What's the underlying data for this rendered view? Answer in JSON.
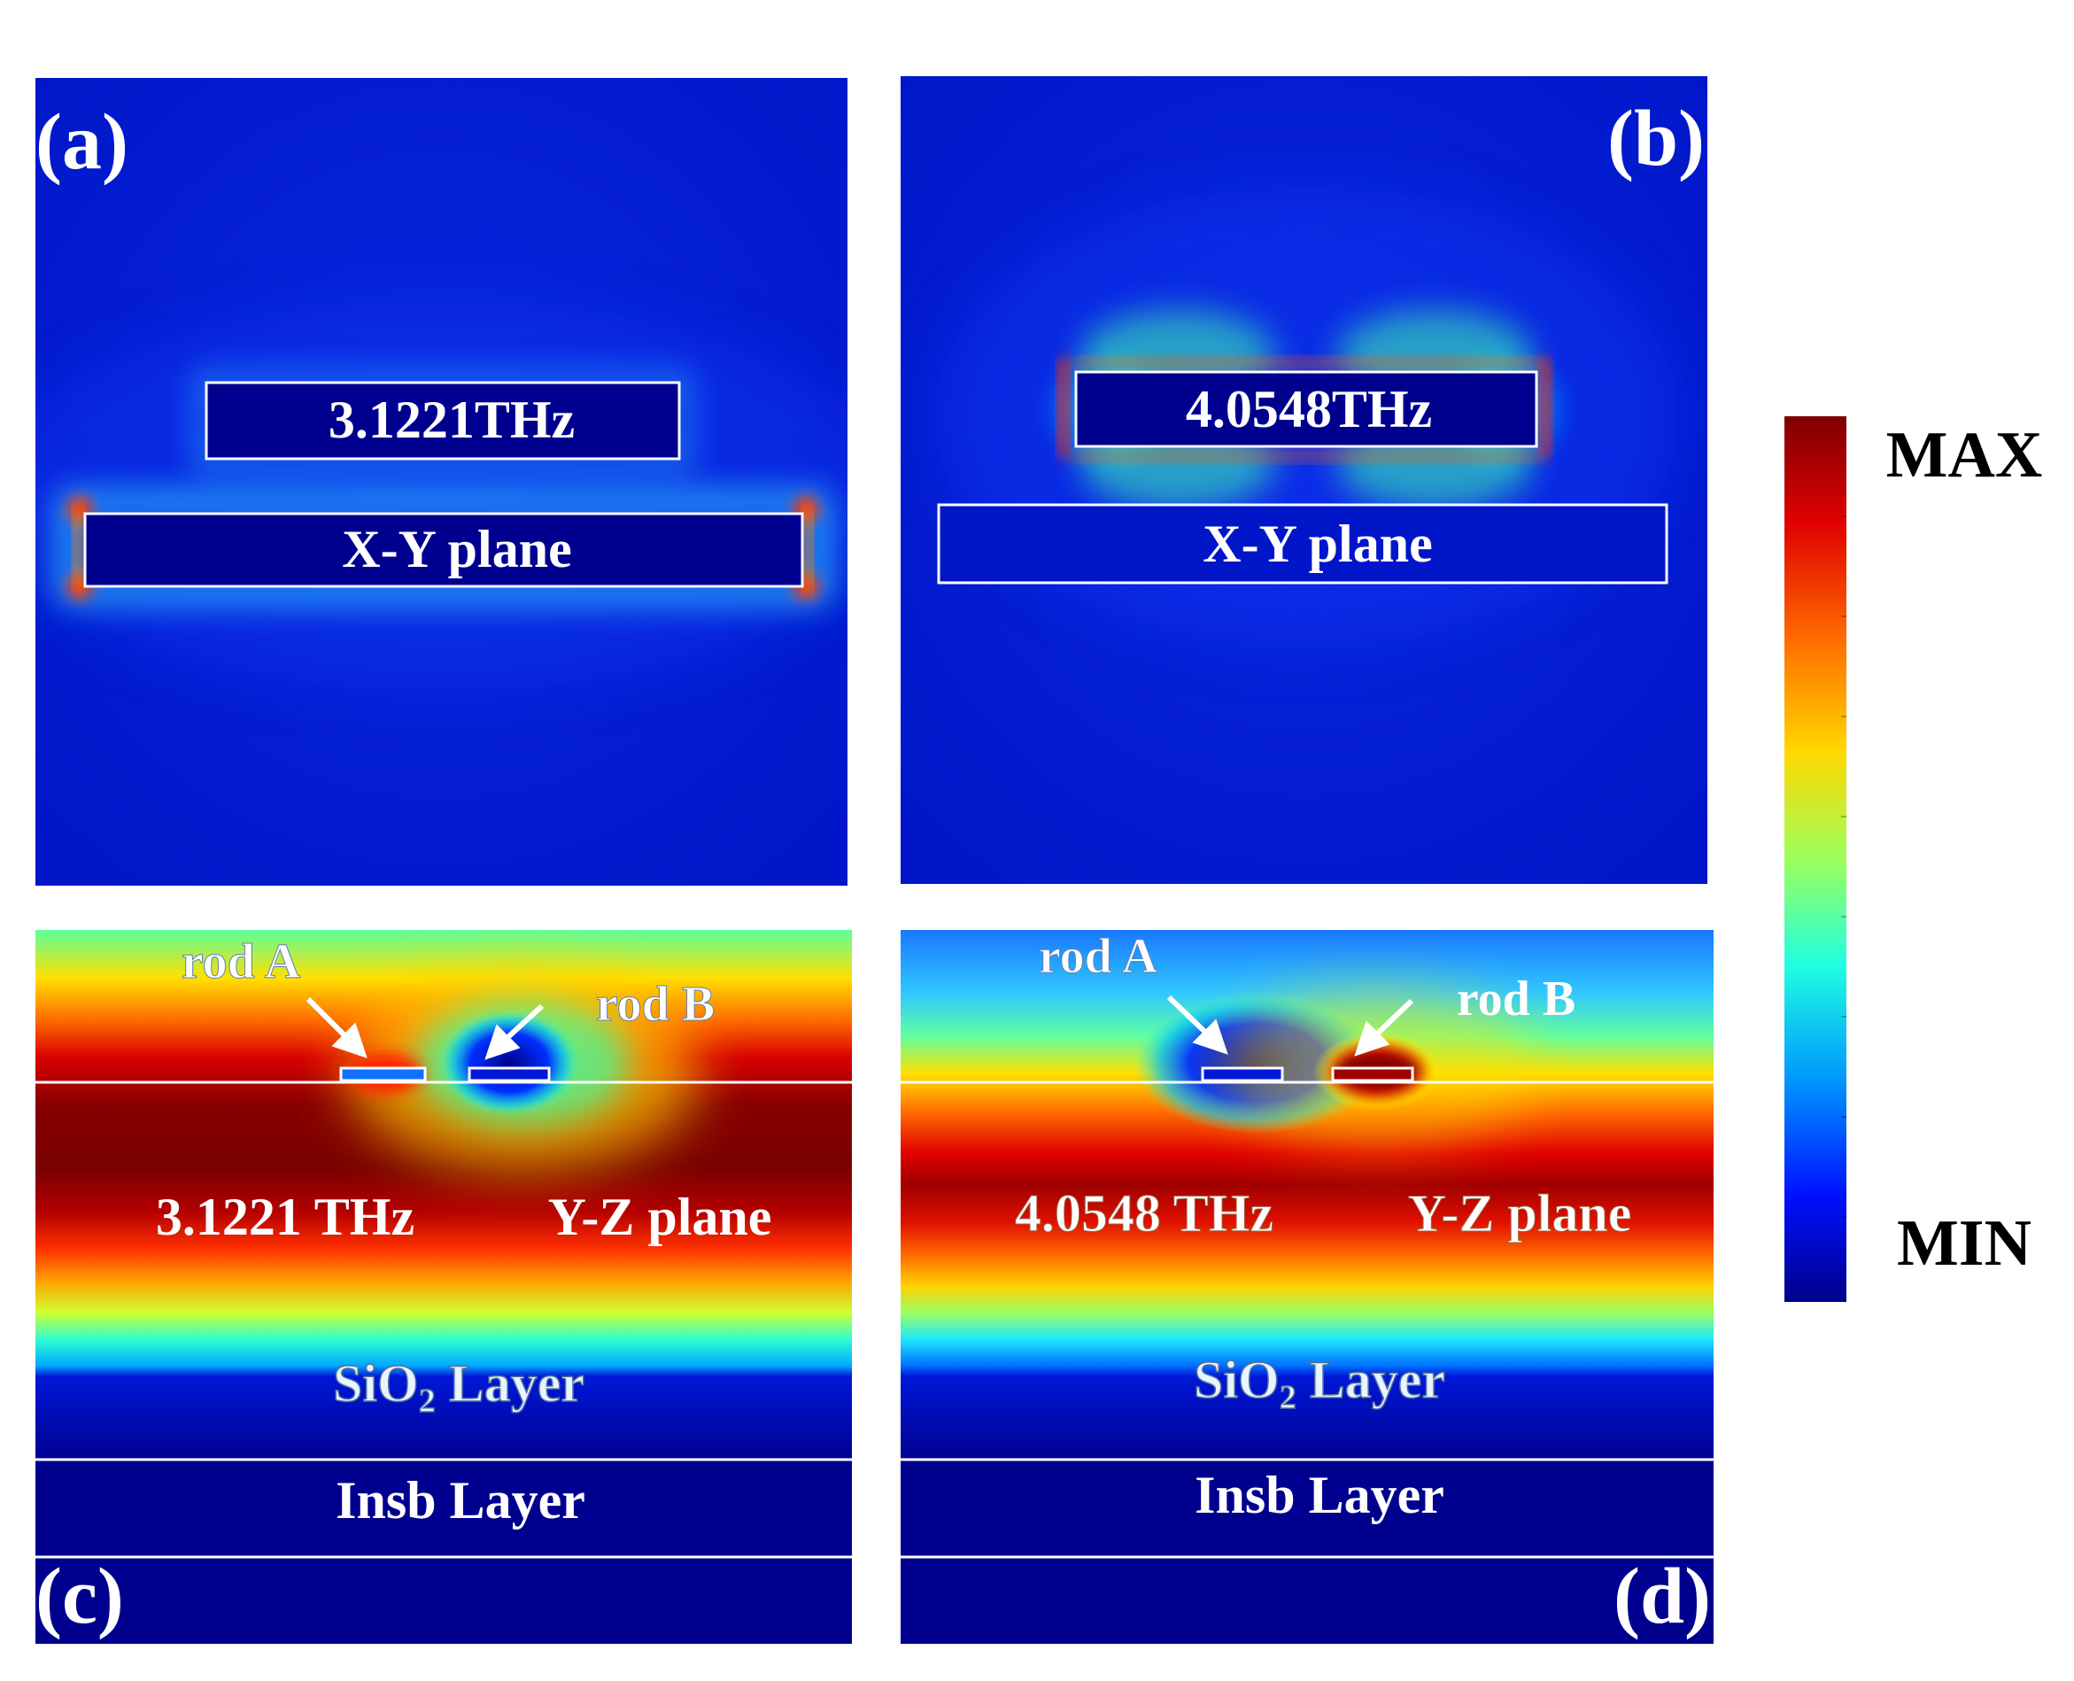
{
  "panels": {
    "a": {
      "letter": "(a)",
      "frequency": "3.1221THz",
      "plane": "X-Y plane"
    },
    "b": {
      "letter": "(b)",
      "frequency": "4.0548THz",
      "plane": "X-Y plane"
    },
    "c": {
      "letter": "(c)",
      "rod_a": "rod A",
      "rod_b": "rod B",
      "frequency": "3.1221 THz",
      "plane": "Y-Z plane",
      "sio2_prefix": "SiO",
      "sio2_sub": "2",
      "sio2_suffix": " Layer",
      "insb": "Insb Layer"
    },
    "d": {
      "letter": "(d)",
      "rod_a": "rod A",
      "rod_b": "rod B",
      "frequency": "4.0548 THz",
      "plane": "Y-Z plane",
      "sio2_prefix": "SiO",
      "sio2_sub": "2",
      "sio2_suffix": " Layer",
      "insb": "Insb Layer"
    }
  },
  "colorbar": {
    "max_label": "MAX",
    "min_label": "MIN",
    "colormap": "jet",
    "stops": [
      "#7f0000",
      "#ff0000",
      "#ff8000",
      "#ffff00",
      "#80ff80",
      "#00ffff",
      "#0080ff",
      "#0000ff",
      "#000080"
    ]
  },
  "colors": {
    "field_min": "#00008f",
    "field_low": "#0b1fd2",
    "outline": "#ffffff"
  }
}
